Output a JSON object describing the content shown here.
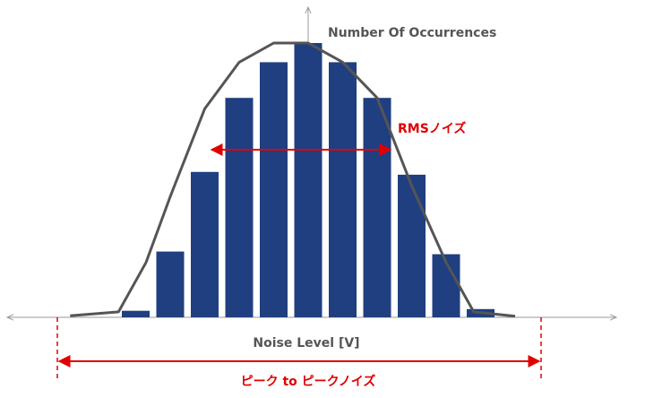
{
  "chart_data": {
    "type": "bar",
    "ylabel": "Number Of Occurrences",
    "xlabel": "Noise Level [V]",
    "values": [
      1.2,
      12,
      26.5,
      40,
      46.5,
      50,
      46.5,
      40,
      26,
      11.5,
      1.5
    ],
    "curve": [
      {
        "x": -6.9,
        "y": 0.3
      },
      {
        "x": -5.5,
        "y": 1.0
      },
      {
        "x": -4.7,
        "y": 10
      },
      {
        "x": -4.0,
        "y": 22
      },
      {
        "x": -3.0,
        "y": 38
      },
      {
        "x": -2.0,
        "y": 46.5
      },
      {
        "x": -1.0,
        "y": 50
      },
      {
        "x": 0.0,
        "y": 50
      },
      {
        "x": 1.0,
        "y": 46.5
      },
      {
        "x": 2.0,
        "y": 40
      },
      {
        "x": 3.0,
        "y": 24
      },
      {
        "x": 4.0,
        "y": 10
      },
      {
        "x": 4.8,
        "y": 1.0
      },
      {
        "x": 6.0,
        "y": 0.2
      }
    ],
    "annotations": {
      "rms": "RMSノイズ",
      "peak_to_peak": "ピーク to ピークノイズ"
    },
    "colors": {
      "bar": "#1f3f80",
      "curve": "#555555",
      "axis": "#999999",
      "annotation": "#e00000"
    }
  }
}
